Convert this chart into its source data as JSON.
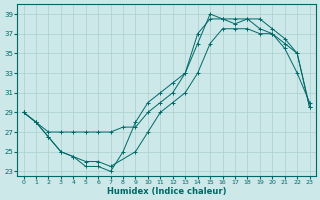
{
  "xlabel": "Humidex (Indice chaleur)",
  "xlim": [
    -0.5,
    23.5
  ],
  "ylim": [
    22.5,
    40.0
  ],
  "yticks": [
    23,
    25,
    27,
    29,
    31,
    33,
    35,
    37,
    39
  ],
  "xticks": [
    0,
    1,
    2,
    3,
    4,
    5,
    6,
    7,
    8,
    9,
    10,
    11,
    12,
    13,
    14,
    15,
    16,
    17,
    18,
    19,
    20,
    21,
    22,
    23
  ],
  "bg_color": "#cce8e8",
  "grid_color": "#aacfcf",
  "line_color": "#006868",
  "line1_x": [
    0,
    1,
    2,
    3,
    4,
    5,
    6,
    7,
    8,
    9,
    10,
    11,
    12,
    13,
    14,
    15,
    16,
    17,
    18,
    19,
    20,
    21,
    22,
    23
  ],
  "line1_y": [
    29,
    28,
    27,
    27,
    27,
    27,
    27,
    27,
    27.5,
    27.5,
    29,
    30,
    31,
    33,
    37,
    38.5,
    38.5,
    38,
    38.5,
    37.5,
    37,
    35.5,
    33,
    30
  ],
  "line2_x": [
    0,
    1,
    2,
    3,
    4,
    5,
    6,
    7,
    9,
    10,
    11,
    12,
    13,
    14,
    15,
    16,
    17,
    18,
    19,
    20,
    21,
    22,
    23
  ],
  "line2_y": [
    29,
    28,
    26.5,
    25,
    24.5,
    24,
    24,
    23.5,
    25,
    27,
    29,
    30,
    31,
    33,
    36,
    37.5,
    37.5,
    37.5,
    37,
    37,
    36,
    35,
    29.5
  ],
  "line3_x": [
    0,
    1,
    2,
    3,
    4,
    5,
    6,
    7,
    8,
    9,
    10,
    11,
    12,
    13,
    14,
    15,
    16,
    17,
    18,
    19,
    20,
    21,
    22,
    23
  ],
  "line3_y": [
    29,
    28,
    26.5,
    25,
    24.5,
    23.5,
    23.5,
    23,
    25,
    28,
    30,
    31,
    32,
    33,
    36,
    39,
    38.5,
    38.5,
    38.5,
    38.5,
    37.5,
    36.5,
    35,
    29.5
  ]
}
